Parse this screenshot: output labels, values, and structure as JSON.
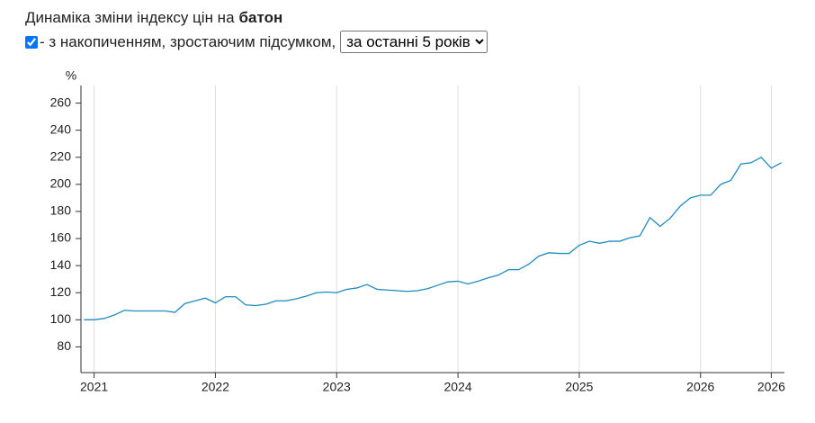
{
  "header": {
    "title_prefix": "Динаміка зміни індексу цін на",
    "title_bold": "батон",
    "checkbox_label": "- з накопиченням, зростаючим підсумком,",
    "select_value": "за останні 5 років"
  },
  "chart_data": {
    "type": "line",
    "ylabel": "%",
    "x": [
      0,
      1,
      2,
      3,
      4,
      5,
      6,
      7,
      8,
      9,
      10,
      11,
      12,
      13,
      14,
      15,
      16,
      17,
      18,
      19,
      20,
      21,
      22,
      23,
      24,
      25,
      26,
      27,
      28,
      29,
      30,
      31,
      32,
      33,
      34,
      35,
      36,
      37,
      38,
      39,
      40,
      41,
      42,
      43,
      44,
      45,
      46,
      47,
      48,
      49,
      50,
      51,
      52,
      53,
      54,
      55,
      56,
      57,
      58,
      59,
      60,
      61,
      62,
      63,
      64,
      65,
      66,
      67,
      68,
      69
    ],
    "series": [
      {
        "color": "#1f8ac0",
        "values": [
          100,
          100,
          101,
          103.5,
          107,
          106.5,
          106.5,
          106.5,
          106.5,
          105.5,
          112,
          114,
          116,
          112.5,
          117,
          117,
          111,
          110.5,
          111.5,
          114,
          114,
          115.5,
          117.5,
          120,
          120.5,
          120,
          122.5,
          123.5,
          126,
          122.5,
          122,
          121.5,
          121,
          121.5,
          123,
          125.5,
          128,
          128.5,
          126.5,
          128.5,
          131,
          133,
          137,
          137,
          141,
          147,
          149.5,
          149,
          149,
          155,
          158,
          156.5,
          158,
          158,
          160.5,
          162,
          175.5,
          169,
          175,
          184,
          190,
          192,
          192,
          200,
          203,
          215,
          216,
          220,
          212,
          216
        ]
      }
    ],
    "xlim": [
      -0.3,
      69.3
    ],
    "xticks": [
      {
        "value": 1,
        "label": "2021"
      },
      {
        "value": 13,
        "label": "2022"
      },
      {
        "value": 25,
        "label": "2023"
      },
      {
        "value": 37,
        "label": "2024"
      },
      {
        "value": 49,
        "label": "2025"
      },
      {
        "value": 61,
        "label": "2026"
      },
      {
        "value": 68,
        "label": "2026"
      }
    ],
    "ylim": [
      61,
      273
    ],
    "yticks": [
      80,
      100,
      120,
      140,
      160,
      180,
      200,
      220,
      240,
      260
    ],
    "grid": true
  }
}
